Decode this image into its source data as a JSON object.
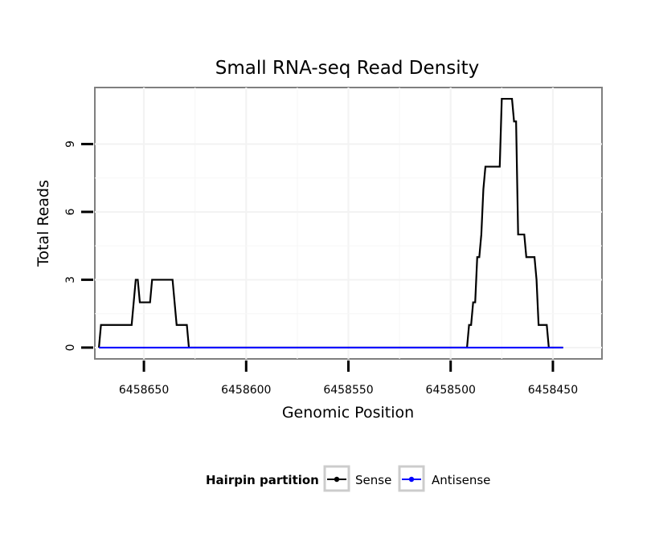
{
  "chart_data": {
    "type": "line",
    "title": "Small RNA-seq Read Density",
    "xlabel": "Genomic Position",
    "ylabel": "Total Reads",
    "x_reversed": true,
    "xlim": [
      6458674,
      6458426
    ],
    "ylim": [
      -0.5,
      11.5
    ],
    "x_ticks": [
      6458650,
      6458600,
      6458550,
      6458500,
      6458450
    ],
    "x_tick_labels": [
      "6458650",
      "6458600",
      "6458550",
      "6458500",
      "6458450"
    ],
    "y_ticks": [
      0,
      3,
      6,
      9
    ],
    "y_tick_labels": [
      "0",
      "3",
      "6",
      "9"
    ],
    "grid": true,
    "legend": {
      "title": "Hairpin partition",
      "position": "bottom"
    },
    "series": [
      {
        "name": "Sense",
        "color": "#000000",
        "x": [
          6458672,
          6458671,
          6458670,
          6458668,
          6458656,
          6458655,
          6458654,
          6458653,
          6458652,
          6458651,
          6458650,
          6458649,
          6458648,
          6458647,
          6458646,
          6458645,
          6458644,
          6458643,
          6458642,
          6458641,
          6458640,
          6458639,
          6458638,
          6458637,
          6458636,
          6458635,
          6458634,
          6458633,
          6458632,
          6458631,
          6458630,
          6458629,
          6458628,
          6458627,
          6458626,
          6458625,
          6458624,
          6458623,
          6458622,
          6458621,
          6458620,
          6458619,
          6458618,
          6458492,
          6458491,
          6458490,
          6458489,
          6458488,
          6458487,
          6458486,
          6458485,
          6458484,
          6458483,
          6458482,
          6458481,
          6458480,
          6458479,
          6458478,
          6458477,
          6458476,
          6458475,
          6458474,
          6458473,
          6458472,
          6458471,
          6458470,
          6458469,
          6458468,
          6458467,
          6458466,
          6458465,
          6458464,
          6458463,
          6458462,
          6458461,
          6458460,
          6458459,
          6458458,
          6458457,
          6458456,
          6458455,
          6458454,
          6458453,
          6458452,
          6458451,
          6458450,
          6458449,
          6458448,
          6458447,
          6458445
        ],
        "y": [
          0,
          1,
          1,
          1,
          1,
          2,
          3,
          3,
          2,
          2,
          2,
          2,
          2,
          2,
          3,
          3,
          3,
          3,
          3,
          3,
          3,
          3,
          3,
          3,
          3,
          2,
          1,
          1,
          1,
          1,
          1,
          1,
          0,
          0,
          0,
          0,
          0,
          0,
          0,
          0,
          0,
          0,
          0,
          0,
          1,
          1,
          2,
          2,
          4,
          4,
          5,
          7,
          8,
          8,
          8,
          8,
          8,
          8,
          8,
          8,
          11,
          11,
          11,
          11,
          11,
          11,
          10,
          10,
          5,
          5,
          5,
          5,
          4,
          4,
          4,
          4,
          4,
          3,
          1,
          1,
          1,
          1,
          1,
          0,
          0,
          0,
          0,
          0,
          0,
          0
        ]
      },
      {
        "name": "Antisense",
        "color": "#0000ff",
        "x": [
          6458672,
          6458445
        ],
        "y": [
          0,
          0
        ]
      }
    ]
  }
}
